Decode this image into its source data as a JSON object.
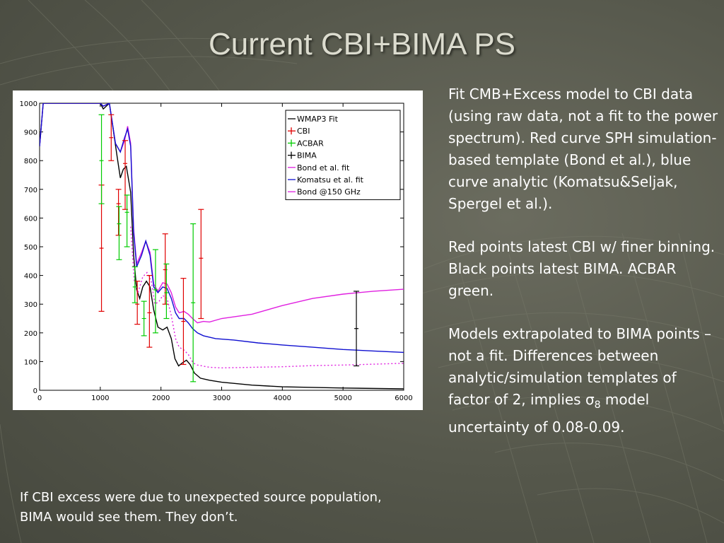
{
  "slide": {
    "title": "Current CBI+BIMA PS",
    "paragraphs": [
      "Fit CMB+Excess model to CBI data (using raw data, not a fit to the power spectrum).  Red curve SPH simulation-based template (Bond et al.), blue curve analytic (Komatsu&Seljak, Spergel et al.).",
      "Red points latest CBI w/ finer binning.  Black points latest BIMA.  ACBAR green."
    ],
    "p3_main": "Models extrapolated to BIMA points – not a fit. Differences between analytic/simulation templates of factor of 2, implies σ",
    "p3_sub": "8",
    "p3_tail": " model uncertainty of 0.08-0.09.",
    "bottom_note": "If CBI excess were due to unexpected source population, BIMA would see them.  They don’t."
  },
  "chart_data": {
    "type": "line",
    "xlim": [
      0,
      6000
    ],
    "ylim": [
      0,
      1000
    ],
    "x_ticks": [
      "0",
      "1000",
      "2000",
      "3000",
      "4000",
      "5000",
      "6000"
    ],
    "y_ticks": [
      "0",
      "100",
      "200",
      "300",
      "400",
      "500",
      "600",
      "700",
      "800",
      "900",
      "1000"
    ],
    "legend_position": "top-right",
    "legend": [
      "WMAP3 Fit",
      "CBI",
      "ACBAR",
      "BIMA",
      "Bond et al. fit",
      "Komatsu et al. fit",
      "Bond @150 GHz"
    ],
    "colors": {
      "wmap": "#000000",
      "cbi": "#e00000",
      "acbar": "#00cc00",
      "bima": "#000000",
      "bond": "#e020e0",
      "komatsu": "#1010d0",
      "bond150": "#e020e0"
    },
    "curves": {
      "wmap": [
        [
          0,
          850
        ],
        [
          60,
          1000
        ],
        [
          1000,
          1000
        ],
        [
          1050,
          980
        ],
        [
          1150,
          1000
        ],
        [
          1280,
          810
        ],
        [
          1330,
          740
        ],
        [
          1380,
          770
        ],
        [
          1430,
          780
        ],
        [
          1500,
          690
        ],
        [
          1550,
          470
        ],
        [
          1600,
          350
        ],
        [
          1650,
          320
        ],
        [
          1700,
          360
        ],
        [
          1760,
          380
        ],
        [
          1820,
          360
        ],
        [
          1880,
          280
        ],
        [
          1950,
          220
        ],
        [
          2030,
          210
        ],
        [
          2100,
          220
        ],
        [
          2170,
          180
        ],
        [
          2230,
          110
        ],
        [
          2290,
          85
        ],
        [
          2350,
          95
        ],
        [
          2420,
          105
        ],
        [
          2480,
          90
        ],
        [
          2550,
          60
        ],
        [
          2650,
          42
        ],
        [
          2800,
          35
        ],
        [
          3000,
          28
        ],
        [
          3500,
          18
        ],
        [
          4000,
          12
        ],
        [
          5000,
          8
        ],
        [
          6000,
          5
        ]
      ],
      "bond": [
        [
          0,
          850
        ],
        [
          60,
          1000
        ],
        [
          1000,
          1000
        ],
        [
          1050,
          990
        ],
        [
          1150,
          1000
        ],
        [
          1250,
          860
        ],
        [
          1330,
          830
        ],
        [
          1400,
          870
        ],
        [
          1450,
          920
        ],
        [
          1500,
          860
        ],
        [
          1550,
          560
        ],
        [
          1600,
          440
        ],
        [
          1680,
          480
        ],
        [
          1750,
          520
        ],
        [
          1820,
          480
        ],
        [
          1880,
          370
        ],
        [
          1950,
          345
        ],
        [
          2030,
          375
        ],
        [
          2100,
          370
        ],
        [
          2170,
          340
        ],
        [
          2240,
          290
        ],
        [
          2300,
          270
        ],
        [
          2380,
          275
        ],
        [
          2450,
          265
        ],
        [
          2520,
          250
        ],
        [
          2600,
          235
        ],
        [
          2700,
          240
        ],
        [
          2800,
          238
        ],
        [
          3000,
          250
        ],
        [
          3500,
          265
        ],
        [
          4000,
          295
        ],
        [
          4500,
          320
        ],
        [
          5000,
          335
        ],
        [
          5500,
          345
        ],
        [
          6000,
          352
        ]
      ],
      "komatsu": [
        [
          0,
          850
        ],
        [
          60,
          1000
        ],
        [
          1000,
          1000
        ],
        [
          1050,
          990
        ],
        [
          1150,
          1000
        ],
        [
          1250,
          860
        ],
        [
          1330,
          830
        ],
        [
          1400,
          880
        ],
        [
          1450,
          910
        ],
        [
          1500,
          850
        ],
        [
          1550,
          550
        ],
        [
          1600,
          430
        ],
        [
          1680,
          470
        ],
        [
          1750,
          520
        ],
        [
          1820,
          470
        ],
        [
          1880,
          360
        ],
        [
          1950,
          340
        ],
        [
          2030,
          360
        ],
        [
          2100,
          355
        ],
        [
          2170,
          320
        ],
        [
          2240,
          270
        ],
        [
          2300,
          250
        ],
        [
          2380,
          250
        ],
        [
          2450,
          235
        ],
        [
          2520,
          215
        ],
        [
          2600,
          200
        ],
        [
          2700,
          190
        ],
        [
          2900,
          180
        ],
        [
          3200,
          175
        ],
        [
          3600,
          165
        ],
        [
          4000,
          158
        ],
        [
          4500,
          150
        ],
        [
          5000,
          142
        ],
        [
          5500,
          137
        ],
        [
          6000,
          132
        ]
      ],
      "bond150": [
        [
          1500,
          570
        ],
        [
          1560,
          380
        ],
        [
          1620,
          340
        ],
        [
          1700,
          395
        ],
        [
          1770,
          410
        ],
        [
          1840,
          380
        ],
        [
          1900,
          300
        ],
        [
          1970,
          310
        ],
        [
          2030,
          330
        ],
        [
          2100,
          320
        ],
        [
          2170,
          260
        ],
        [
          2240,
          180
        ],
        [
          2300,
          150
        ],
        [
          2380,
          140
        ],
        [
          2450,
          125
        ],
        [
          2530,
          95
        ],
        [
          2600,
          88
        ],
        [
          2800,
          80
        ],
        [
          3000,
          78
        ],
        [
          3500,
          80
        ],
        [
          4000,
          82
        ],
        [
          4500,
          86
        ],
        [
          5000,
          88
        ],
        [
          5500,
          91
        ],
        [
          6000,
          94
        ]
      ]
    },
    "points": {
      "cbi": [
        [
          1020,
          495,
          715,
          275
        ],
        [
          1180,
          880,
          960,
          800
        ],
        [
          1300,
          650,
          700,
          540
        ],
        [
          1410,
          790,
          870,
          630
        ],
        [
          1610,
          300,
          380,
          230
        ],
        [
          1810,
          270,
          400,
          150
        ],
        [
          2070,
          420,
          545,
          300
        ],
        [
          2370,
          240,
          390,
          90
        ],
        [
          2660,
          460,
          630,
          250
        ]
      ],
      "acbar": [
        [
          1020,
          800,
          960,
          650
        ],
        [
          1310,
          580,
          640,
          455
        ],
        [
          1440,
          620,
          680,
          500
        ],
        [
          1570,
          360,
          430,
          305
        ],
        [
          1720,
          250,
          310,
          190
        ],
        [
          1910,
          350,
          490,
          200
        ],
        [
          2090,
          340,
          440,
          250
        ],
        [
          2530,
          305,
          580,
          30
        ]
      ],
      "bima": [
        [
          5220,
          215,
          345,
          85
        ]
      ]
    }
  }
}
